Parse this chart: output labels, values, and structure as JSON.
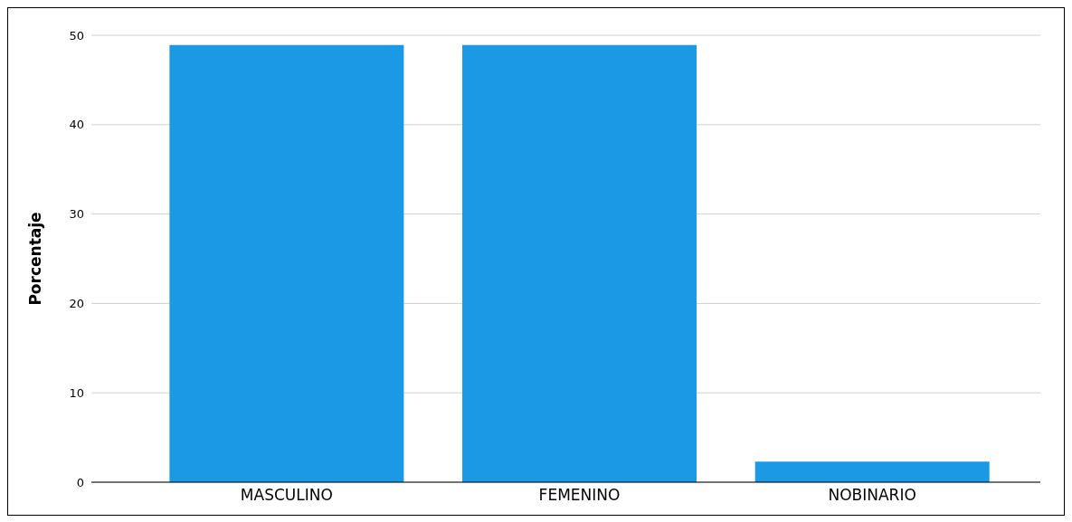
{
  "chart_data": {
    "type": "bar",
    "ylabel": "Porcentaje",
    "categories": [
      "MASCULINO",
      "FEMENINO",
      "NOBINARIO"
    ],
    "values": [
      48.9,
      48.9,
      2.3
    ],
    "color": "#1c99e5",
    "ylim": [
      0,
      50
    ],
    "yticks": [
      0,
      10,
      20,
      30,
      40,
      50
    ],
    "grid": "y"
  }
}
